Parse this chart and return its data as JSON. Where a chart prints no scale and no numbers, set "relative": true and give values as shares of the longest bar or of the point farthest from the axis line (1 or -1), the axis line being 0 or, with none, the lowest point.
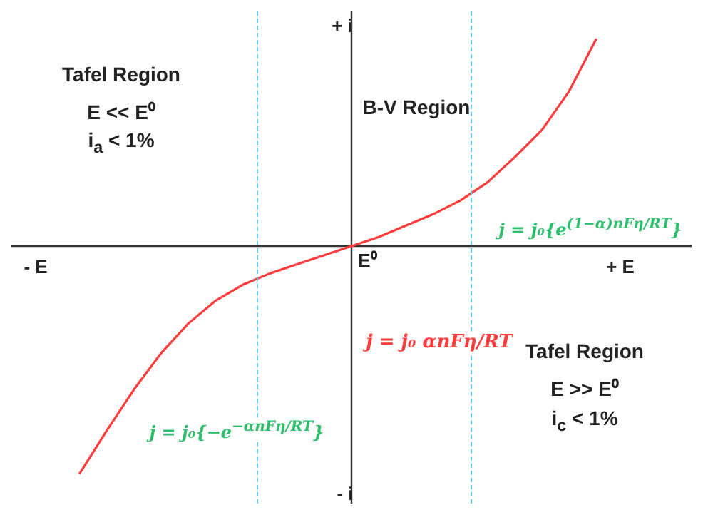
{
  "chart_data": {
    "type": "line",
    "relative": true,
    "legend": false,
    "marker": "none",
    "line_style": "solid",
    "categories": [
      null,
      null,
      null,
      null,
      null,
      null,
      null,
      null,
      null,
      null,
      null,
      null,
      null,
      null,
      null,
      null,
      null,
      null,
      null,
      null,
      null,
      null,
      null,
      null,
      null
    ],
    "series": [
      {
        "color": "#ff3b3b",
        "values": [
          null,
          null,
          -1,
          -0.81,
          -0.63,
          -0.47,
          -0.34,
          -0.24,
          -0.17,
          -0.12,
          -0.08,
          -0.04,
          0,
          0.04,
          0.09,
          0.14,
          0.2,
          0.28,
          0.39,
          0.51,
          0.68,
          0.91,
          null,
          null,
          null
        ]
      }
    ],
    "annotations": [
      "+ i",
      "- i",
      "- E",
      "+ E",
      "E⁰",
      "Tafel Region",
      "E << E⁰",
      "i$_{a}$ < 1%",
      "B-V Region",
      "Tafel Region",
      "E >> E⁰",
      "i$_{c}$ < 1%",
      "j = j₀{e$^{(1−α)nFη/RT}$}",
      "j = j₀ αnFη/RT",
      "j = j₀{−e$^{−αnFη/RT}$}"
    ]
  }
}
